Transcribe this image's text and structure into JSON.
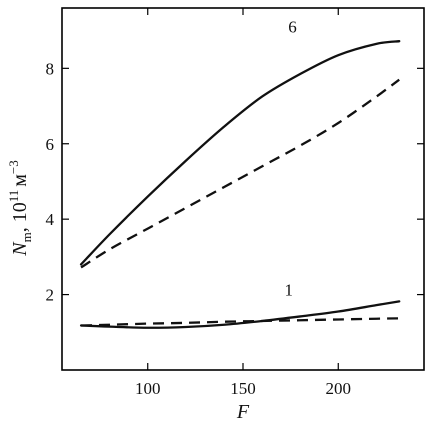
{
  "chart_data": {
    "type": "line",
    "title": "",
    "xlabel": "F",
    "ylabel": {
      "symbol": "N",
      "subscript": "m",
      "separator": ", ",
      "unit_base": "10",
      "unit_exponent": "11",
      "unit_name": "м",
      "unit_name_exponent": "−3"
    },
    "xlim": [
      55,
      245
    ],
    "ylim": [
      0.0,
      9.6
    ],
    "x_ticks": [
      100,
      150,
      200
    ],
    "y_ticks": [
      2,
      4,
      6,
      8
    ],
    "grid": false,
    "legend": "none",
    "series": [
      {
        "style": "solid",
        "x": [
          65,
          80,
          100,
          120,
          140,
          160,
          180,
          200,
          220,
          232
        ],
        "y": [
          2.8,
          3.6,
          4.6,
          5.55,
          6.45,
          7.25,
          7.85,
          8.35,
          8.65,
          8.72
        ]
      },
      {
        "style": "dashed",
        "x": [
          65,
          80,
          100,
          120,
          140,
          160,
          180,
          200,
          220,
          232
        ],
        "y": [
          2.72,
          3.2,
          3.75,
          4.3,
          4.85,
          5.4,
          5.95,
          6.55,
          7.25,
          7.7
        ]
      },
      {
        "style": "solid",
        "x": [
          65,
          80,
          100,
          120,
          140,
          160,
          180,
          200,
          220,
          232
        ],
        "y": [
          1.18,
          1.15,
          1.12,
          1.14,
          1.2,
          1.3,
          1.42,
          1.55,
          1.72,
          1.82
        ]
      },
      {
        "style": "dashed",
        "x": [
          65,
          80,
          100,
          120,
          140,
          160,
          180,
          200,
          220,
          232
        ],
        "y": [
          1.18,
          1.2,
          1.23,
          1.25,
          1.28,
          1.3,
          1.32,
          1.34,
          1.36,
          1.37
        ]
      }
    ],
    "annotations": [
      {
        "text": "6",
        "x": 176,
        "y": 8.95
      },
      {
        "text": "1",
        "x": 174,
        "y": 1.98
      }
    ]
  }
}
